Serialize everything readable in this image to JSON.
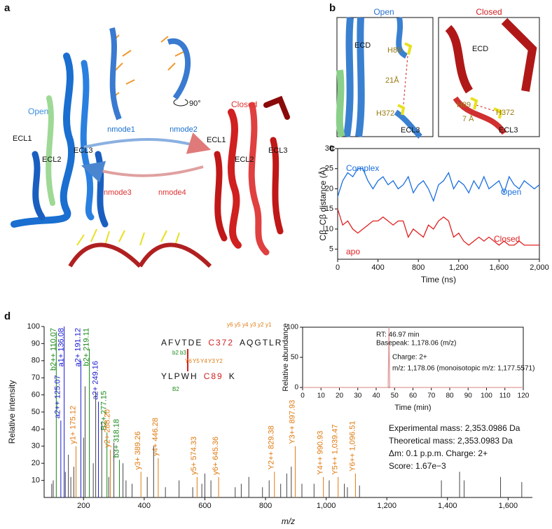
{
  "panel_labels": [
    "a",
    "b",
    "c",
    "d"
  ],
  "panel_a": {
    "open": "Open",
    "closed": "Closed",
    "nmode1": "nmode1",
    "nmode2": "nmode2",
    "rotation": "90°",
    "nmode3": "nmode3",
    "nmode4": "nmode4",
    "open_loops": [
      "ECL1",
      "ECL2",
      "ECL3"
    ],
    "closed_loops": [
      "ECL1",
      "ECL2",
      "ECL3"
    ]
  },
  "panel_b": {
    "open": {
      "title": "Open",
      "labels": [
        "ECD",
        "H89",
        "21Å",
        "H372",
        "ECL3"
      ]
    },
    "closed": {
      "title": "Closed",
      "labels": [
        "ECD",
        "H89",
        "7 Å",
        "H372",
        "ECL3"
      ]
    }
  },
  "chart_data": [
    {
      "type": "line",
      "ylabel": "Cβ–Cβ distance (Å)",
      "xlabel": "Time (ns)",
      "x": [
        0,
        50,
        100,
        150,
        200,
        250,
        300,
        350,
        400,
        450,
        500,
        550,
        600,
        650,
        700,
        750,
        800,
        850,
        900,
        950,
        1000,
        1050,
        1100,
        1150,
        1200,
        1250,
        1300,
        1350,
        1400,
        1450,
        1500,
        1550,
        1600,
        1650,
        1700,
        1750,
        1800,
        1850,
        1900,
        1950,
        2000
      ],
      "series": [
        {
          "name": "Open",
          "color": "#1a6fe0",
          "values": [
            18,
            22,
            24,
            23,
            25,
            25,
            22,
            20,
            22,
            23,
            21,
            22,
            20,
            21,
            23,
            19,
            21,
            22,
            20,
            17,
            21,
            22,
            24,
            20,
            22,
            21,
            19,
            22,
            20,
            23,
            20,
            21,
            22,
            19,
            23,
            21,
            20,
            22,
            21,
            20,
            21
          ]
        },
        {
          "name": "Closed",
          "color": "#e02020",
          "values": [
            15,
            11,
            12,
            10,
            9,
            10,
            11,
            12,
            12,
            13,
            12,
            11,
            12,
            12,
            8,
            10,
            9,
            8,
            11,
            10,
            12,
            13,
            12,
            8,
            9,
            7,
            6,
            7,
            8,
            7,
            8,
            7,
            6,
            7,
            6,
            6,
            7,
            6,
            6,
            6,
            6
          ]
        }
      ],
      "annotations": [
        "Complex",
        "apo"
      ],
      "xlim": [
        0,
        2000
      ],
      "xticks": [
        0,
        400,
        800,
        {
          "value": 1200,
          "label": "1,200"
        },
        {
          "value": 1600,
          "label": "1,600"
        },
        {
          "value": 2000,
          "label": "2,000"
        }
      ],
      "ylim": [
        2.5,
        30
      ],
      "yticks": [
        5,
        10,
        15,
        20,
        25,
        30
      ]
    },
    {
      "type": "spectrum",
      "ylabel": "Relative intensity",
      "xlabel": "m/z",
      "x": [
        110.07,
        125.07,
        136.08,
        175.12,
        191.12,
        219.11,
        249.16,
        277.15,
        288.2,
        318.18,
        389.26,
        446.28,
        574.33,
        645.36,
        829.38,
        897.93,
        990.93,
        1039.47,
        1096.51,
        95,
        100,
        140,
        150,
        158,
        168,
        200,
        205,
        232,
        240,
        260,
        283,
        300,
        330,
        340,
        360,
        410,
        431,
        470,
        515,
        560,
        590,
        600,
        620,
        700,
        720,
        745,
        790,
        812,
        850,
        870,
        885,
        920,
        960,
        1010,
        1060,
        1070,
        1110,
        1380,
        1440,
        1455,
        1575,
        1645
      ],
      "values": [
        97,
        45,
        100,
        30,
        80,
        87,
        56,
        38,
        28,
        22,
        15,
        23,
        12,
        12,
        15,
        30,
        12,
        12,
        14,
        8,
        10,
        15,
        25,
        12,
        18,
        35,
        65,
        20,
        62,
        44,
        12,
        32,
        20,
        10,
        8,
        12,
        30,
        6,
        10,
        6,
        8,
        14,
        10,
        6,
        8,
        12,
        6,
        10,
        8,
        14,
        18,
        8,
        8,
        10,
        8,
        6,
        7,
        10,
        15,
        10,
        12,
        9
      ],
      "colors": [
        "#1a8a1a",
        "#1a1ad0",
        "#1a1ad0",
        "#e07a10",
        "#1a1ad0",
        "#1a8a1a",
        "#1a1ad0",
        "#1a8a1a",
        "#e07a10",
        "#1a8a1a",
        "#e07a10",
        "#e07a10",
        "#e07a10",
        "#e07a10",
        "#e07a10",
        "#e07a10",
        "#e07a10",
        "#e07a10",
        "#e07a10",
        "#444",
        "#444",
        "#444",
        "#444",
        "#444",
        "#444",
        "#444",
        "#444",
        "#444",
        "#444",
        "#444",
        "#444",
        "#444",
        "#444",
        "#444",
        "#444",
        "#444",
        "#444",
        "#444",
        "#444",
        "#444",
        "#444",
        "#444",
        "#444",
        "#444",
        "#444",
        "#444",
        "#444",
        "#444",
        "#444",
        "#444",
        "#444",
        "#444",
        "#444",
        "#444",
        "#444",
        "#444",
        "#444",
        "#444",
        "#444",
        "#444",
        "#444",
        "#444"
      ],
      "peak_labels": [
        "b2++ 110.07",
        "a2++ 125.07",
        "a1+ 136.08",
        "y1+ 175.12",
        "a2+ 191.12",
        "b2+ 219.11",
        "a2+ 249.16",
        "B2+ 277.15",
        "y2+ 288.20",
        "b3+ 318.18",
        "y3+ 389.26",
        "y4+ 446.28",
        "y5+ 574.33",
        "y6+ 645.36",
        "Y2++ 829.38",
        "Y3++ 897.93",
        "Y4++ 990.93",
        "Y5++ 1,039.47",
        "Y6++ 1,096.51",
        null,
        null,
        null,
        null,
        null,
        null,
        null,
        null,
        null,
        null,
        null,
        null,
        null,
        null,
        null,
        null,
        null,
        null,
        null,
        null,
        null,
        null,
        null,
        null,
        null,
        null,
        null,
        null,
        null,
        null,
        null,
        null,
        null,
        null,
        null,
        null,
        null,
        null,
        null,
        null,
        null,
        null,
        null
      ],
      "xlim": [
        70,
        1680
      ],
      "xticks": [
        200,
        400,
        600,
        800,
        {
          "value": 1000,
          "label": "1,000"
        },
        {
          "value": 1200,
          "label": "1,200"
        },
        {
          "value": 1400,
          "label": "1,400"
        },
        {
          "value": 1600,
          "label": "1,600"
        }
      ],
      "ylim": [
        0,
        100
      ],
      "yticks": [
        10,
        20,
        30,
        40,
        50,
        60,
        70,
        80,
        90,
        100
      ],
      "annotations": [
        "Experimental mass: 2,353.0986 Da",
        "Theoretical mass: 2,353.0983 Da",
        "Δm: 0.1 p.p.m.  Charge: 2+",
        "Score:  1.67e−3"
      ],
      "sequence": {
        "peptide1": [
          "AFVTDE",
          "C372",
          "AQGTLR"
        ],
        "peptide2": [
          "YLPWH",
          "C89",
          "K"
        ],
        "y_ions": [
          "y6",
          "y5",
          "y4",
          "y3",
          "y2",
          "y1"
        ],
        "b_ions": [
          "b2",
          "b3"
        ],
        "Y_ions": [
          "Y6",
          "Y5",
          "Y4",
          "Y3",
          "Y2"
        ],
        "B_ions": [
          "B2"
        ]
      }
    },
    {
      "type": "line",
      "ylabel": "Relative abundance",
      "xlabel": "Time (min)",
      "x": [
        0,
        46.5,
        46.97,
        47.4,
        120
      ],
      "series": [
        {
          "name": null,
          "color": "#e09a9a",
          "values": [
            0,
            0,
            100,
            0,
            0
          ]
        }
      ],
      "annotations": [
        "RT: 46.97 min",
        "Basepeak: 1,178.06 (m/z)",
        "Charge: 2+",
        "m/z: 1,178.06 (monoisotopic m/z: 1,177.5571)"
      ],
      "xlim": [
        0,
        120
      ],
      "xticks": [
        0,
        10,
        20,
        30,
        40,
        50,
        60,
        70,
        80,
        90,
        100,
        110,
        120
      ],
      "ylim": [
        0,
        100
      ],
      "yticks": [
        0,
        50,
        100
      ]
    }
  ]
}
